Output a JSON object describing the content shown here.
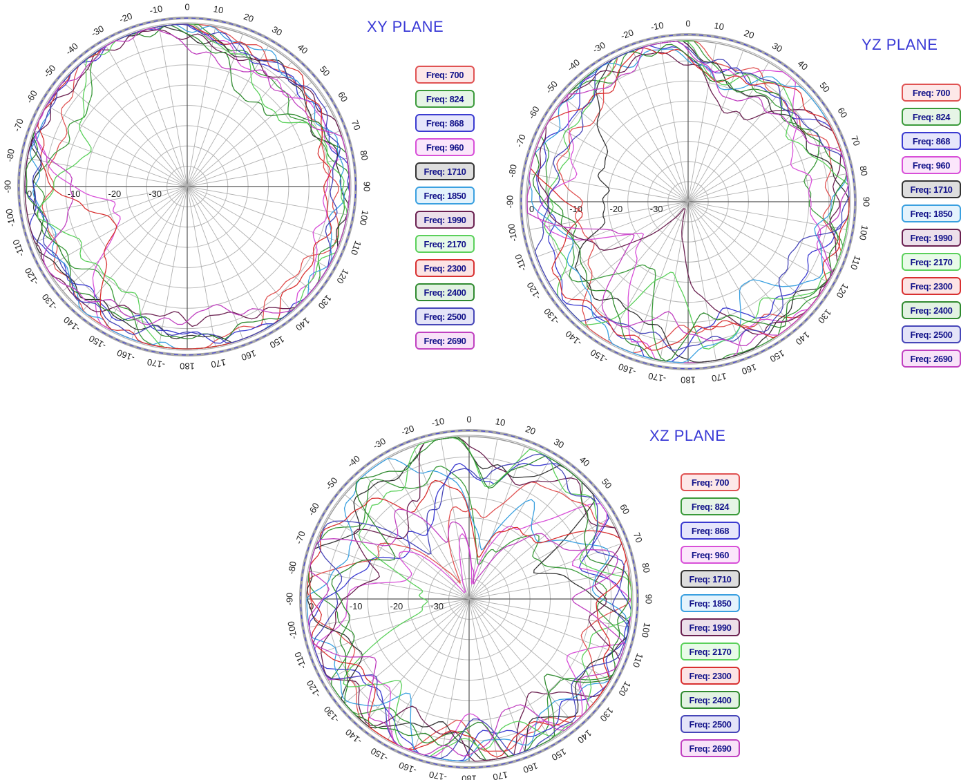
{
  "chart_data": [
    {
      "type": "polar",
      "title": "XY PLANE",
      "angle_ticks": [
        "0",
        "10",
        "20",
        "30",
        "40",
        "50",
        "60",
        "70",
        "80",
        "90",
        "100",
        "110",
        "120",
        "130",
        "140",
        "150",
        "160",
        "170",
        "180",
        "-170",
        "-160",
        "-150",
        "-140",
        "-130",
        "-120",
        "-110",
        "-100",
        "-90",
        "-80",
        "-70",
        "-60",
        "-50",
        "-40",
        "-30",
        "-20",
        "-10"
      ],
      "radial_ticks": [
        "0",
        "-10",
        "-20",
        "-30"
      ],
      "rlim": [
        -40,
        0
      ],
      "legend": [
        "Freq: 700",
        "Freq: 824",
        "Freq: 868",
        "Freq: 960",
        "Freq: 1710",
        "Freq: 1850",
        "Freq: 1990",
        "Freq: 2170",
        "Freq: 2300",
        "Freq: 2400",
        "Freq: 2500",
        "Freq: 2690"
      ],
      "series_colors": [
        "#e05252",
        "#3a9a3a",
        "#3a3ad0",
        "#d84fd8",
        "#333333",
        "#3aa0e0",
        "#6a2050",
        "#5ad05a",
        "#d83030",
        "#2f8a2f",
        "#4646b8",
        "#c040c0"
      ],
      "reference_level": 1.5,
      "series_shape": [
        {
          "base": -1.5,
          "harmonics": [
            [
              2,
              3.5,
              0.2
            ],
            [
              3,
              2.5,
              1.0
            ],
            [
              5,
              1.5,
              2.0
            ]
          ],
          "dip": [
            130,
            6,
            22
          ]
        },
        {
          "base": -2.0,
          "harmonics": [
            [
              2,
              4.5,
              1.2
            ],
            [
              4,
              2.0,
              0.4
            ],
            [
              7,
              1.2,
              1.6
            ]
          ],
          "dip": [
            300,
            9,
            28
          ]
        },
        {
          "base": -1.0,
          "harmonics": [
            [
              2,
              2.5,
              2.2
            ],
            [
              3,
              1.5,
              0.3
            ],
            [
              6,
              1.0,
              1.1
            ]
          ],
          "dip": [
            230,
            4,
            20
          ]
        },
        {
          "base": -2.5,
          "harmonics": [
            [
              2,
              5.0,
              0.7
            ],
            [
              3,
              3.0,
              2.4
            ],
            [
              5,
              1.8,
              0.5
            ]
          ],
          "dip": [
            250,
            10,
            30
          ]
        },
        {
          "base": -1.2,
          "harmonics": [
            [
              2,
              2.8,
              1.7
            ],
            [
              4,
              1.5,
              2.6
            ],
            [
              7,
              0.8,
              0.9
            ]
          ],
          "dip": [
            60,
            3,
            18
          ]
        },
        {
          "base": -0.8,
          "harmonics": [
            [
              2,
              2.2,
              0.9
            ],
            [
              3,
              1.2,
              1.9
            ],
            [
              6,
              0.8,
              2.8
            ]
          ],
          "dip": [
            100,
            3,
            16
          ]
        },
        {
          "base": -1.6,
          "harmonics": [
            [
              2,
              3.2,
              2.9
            ],
            [
              3,
              2.0,
              0.6
            ],
            [
              5,
              1.2,
              1.4
            ]
          ],
          "dip": [
            200,
            4,
            22
          ]
        },
        {
          "base": -3.0,
          "harmonics": [
            [
              2,
              5.5,
              1.4
            ],
            [
              4,
              3.0,
              0.2
            ],
            [
              9,
              1.5,
              2.1
            ]
          ],
          "dip": [
            290,
            12,
            32
          ]
        },
        {
          "base": -2.2,
          "harmonics": [
            [
              2,
              4.0,
              0.4
            ],
            [
              3,
              2.2,
              2.8
            ],
            [
              6,
              1.4,
              1.2
            ]
          ],
          "dip": [
            240,
            12,
            26
          ]
        },
        {
          "base": -1.8,
          "harmonics": [
            [
              2,
              3.8,
              2.0
            ],
            [
              3,
              1.6,
              1.5
            ],
            [
              8,
              1.0,
              0.3
            ]
          ],
          "dip": [
            40,
            8,
            24
          ]
        },
        {
          "base": -1.1,
          "harmonics": [
            [
              2,
              2.6,
              1.0
            ],
            [
              4,
              1.4,
              2.2
            ],
            [
              5,
              0.9,
              0.8
            ]
          ],
          "dip": [
            180,
            3,
            20
          ]
        },
        {
          "base": -2.4,
          "harmonics": [
            [
              2,
              4.6,
              2.6
            ],
            [
              3,
              2.8,
              0.9
            ],
            [
              7,
              1.6,
              1.8
            ]
          ],
          "dip": [
            265,
            10,
            26
          ]
        }
      ]
    },
    {
      "type": "polar",
      "title": "YZ PLANE",
      "angle_ticks": [
        "0",
        "10",
        "20",
        "30",
        "40",
        "50",
        "60",
        "70",
        "80",
        "90",
        "100",
        "110",
        "120",
        "130",
        "140",
        "150",
        "160",
        "170",
        "180",
        "-170",
        "-160",
        "-150",
        "-140",
        "-130",
        "-120",
        "-110",
        "-100",
        "-90",
        "-80",
        "-70",
        "-60",
        "-50",
        "-40",
        "-30",
        "-20",
        "-10"
      ],
      "radial_ticks": [
        "0",
        "-10",
        "-20",
        "-30"
      ],
      "rlim": [
        -40,
        0
      ],
      "legend": [
        "Freq: 700",
        "Freq: 824",
        "Freq: 868",
        "Freq: 960",
        "Freq: 1710",
        "Freq: 1850",
        "Freq: 1990",
        "Freq: 2170",
        "Freq: 2300",
        "Freq: 2400",
        "Freq: 2500",
        "Freq: 2690"
      ],
      "series_colors": [
        "#e05252",
        "#3a9a3a",
        "#3a3ad0",
        "#d84fd8",
        "#333333",
        "#3aa0e0",
        "#6a2050",
        "#5ad05a",
        "#d83030",
        "#2f8a2f",
        "#4646b8",
        "#c040c0"
      ],
      "reference_level": 1.5,
      "series_shape": [
        {
          "base": -3.0,
          "harmonics": [
            [
              3,
              4.0,
              0.3
            ],
            [
              5,
              3.0,
              1.4
            ],
            [
              8,
              2.0,
              2.2
            ]
          ],
          "dip": [
            255,
            14,
            30
          ]
        },
        {
          "base": -3.5,
          "harmonics": [
            [
              2,
              4.5,
              1.1
            ],
            [
              6,
              3.0,
              0.5
            ],
            [
              9,
              2.0,
              1.8
            ]
          ],
          "dip": [
            215,
            12,
            24
          ]
        },
        {
          "base": -2.5,
          "harmonics": [
            [
              3,
              3.5,
              2.1
            ],
            [
              4,
              2.5,
              0.7
            ],
            [
              7,
              2.0,
              2.9
            ]
          ],
          "dip": [
            170,
            10,
            20
          ]
        },
        {
          "base": -4.0,
          "harmonics": [
            [
              2,
              5.0,
              0.6
            ],
            [
              5,
              3.5,
              2.4
            ],
            [
              8,
              2.5,
              1.0
            ]
          ],
          "dip": [
            230,
            14,
            28
          ]
        },
        {
          "base": -3.0,
          "harmonics": [
            [
              2,
              4.5,
              1.8
            ],
            [
              4,
              3.0,
              0.2
            ],
            [
              6,
              2.5,
              1.5
            ]
          ],
          "dip": [
            280,
            22,
            40
          ]
        },
        {
          "base": -2.8,
          "harmonics": [
            [
              3,
              3.8,
              2.7
            ],
            [
              5,
              2.6,
              1.2
            ],
            [
              9,
              1.6,
              0.4
            ]
          ],
          "dip": [
            145,
            10,
            18
          ]
        },
        {
          "base": -4.5,
          "harmonics": [
            [
              2,
              5.5,
              2.3
            ],
            [
              4,
              3.5,
              1.6
            ],
            [
              6,
              2.8,
              0.1
            ]
          ],
          "dip": [
            210,
            24,
            60
          ]
        },
        {
          "base": -3.6,
          "harmonics": [
            [
              3,
              4.5,
              0.9
            ],
            [
              6,
              3.0,
              2.0
            ],
            [
              8,
              2.2,
              1.3
            ]
          ],
          "dip": [
            200,
            15,
            26
          ]
        },
        {
          "base": -2.2,
          "harmonics": [
            [
              2,
              3.6,
              2.9
            ],
            [
              5,
              2.4,
              0.8
            ],
            [
              7,
              2.0,
              1.9
            ]
          ],
          "dip": [
            265,
            12,
            22
          ]
        },
        {
          "base": -3.2,
          "harmonics": [
            [
              2,
              4.8,
              1.4
            ],
            [
              3,
              3.2,
              2.6
            ],
            [
              9,
              1.8,
              0.6
            ]
          ],
          "dip": [
            165,
            12,
            22
          ]
        },
        {
          "base": -2.6,
          "harmonics": [
            [
              3,
              3.2,
              0.5
            ],
            [
              4,
              2.8,
              1.7
            ],
            [
              7,
              2.2,
              2.5
            ]
          ],
          "dip": [
            125,
            10,
            24
          ]
        },
        {
          "base": -3.8,
          "harmonics": [
            [
              2,
              5.2,
              2.0
            ],
            [
              5,
              3.4,
              0.3
            ],
            [
              8,
              2.6,
              1.1
            ]
          ],
          "dip": [
            240,
            12,
            26
          ]
        }
      ]
    },
    {
      "type": "polar",
      "title": "XZ PLANE",
      "angle_ticks": [
        "0",
        "10",
        "20",
        "30",
        "40",
        "50",
        "60",
        "70",
        "80",
        "90",
        "100",
        "110",
        "120",
        "130",
        "140",
        "150",
        "160",
        "170",
        "180",
        "-170",
        "-160",
        "-150",
        "-140",
        "-130",
        "-120",
        "-110",
        "-100",
        "-90",
        "-80",
        "-70",
        "-60",
        "-50",
        "-40",
        "-30",
        "-20",
        "-10"
      ],
      "radial_ticks": [
        "0",
        "-10",
        "-20",
        "-30"
      ],
      "rlim": [
        -40,
        0
      ],
      "legend": [
        "Freq: 700",
        "Freq: 824",
        "Freq: 868",
        "Freq: 960",
        "Freq: 1710",
        "Freq: 1850",
        "Freq: 1990",
        "Freq: 2170",
        "Freq: 2300",
        "Freq: 2400",
        "Freq: 2500",
        "Freq: 2690"
      ],
      "series_colors": [
        "#e05252",
        "#3a9a3a",
        "#3a3ad0",
        "#d84fd8",
        "#333333",
        "#3aa0e0",
        "#6a2050",
        "#5ad05a",
        "#d83030",
        "#2f8a2f",
        "#4646b8",
        "#c040c0"
      ],
      "reference_level": 1.5,
      "series_shape": [
        {
          "base": -3.0,
          "harmonics": [
            [
              5,
              4.0,
              0.2
            ],
            [
              8,
              3.0,
              1.1
            ],
            [
              10,
              2.0,
              2.3
            ]
          ],
          "dip": [
            335,
            24,
            60
          ]
        },
        {
          "base": -3.5,
          "harmonics": [
            [
              6,
              4.5,
              1.3
            ],
            [
              9,
              3.0,
              0.6
            ],
            [
              12,
              2.0,
              1.9
            ]
          ],
          "dip": [
            30,
            22,
            60
          ]
        },
        {
          "base": -2.8,
          "harmonics": [
            [
              5,
              3.5,
              2.4
            ],
            [
              7,
              3.0,
              0.9
            ],
            [
              11,
              2.2,
              1.5
            ]
          ],
          "dip": [
            320,
            18,
            50
          ]
        },
        {
          "base": -4.0,
          "harmonics": [
            [
              7,
              5.0,
              0.7
            ],
            [
              10,
              3.5,
              2.1
            ],
            [
              13,
              2.4,
              0.4
            ]
          ],
          "dip": [
            340,
            30,
            80
          ]
        },
        {
          "base": -3.2,
          "harmonics": [
            [
              6,
              4.2,
              1.9
            ],
            [
              8,
              3.0,
              0.3
            ],
            [
              12,
              2.0,
              2.7
            ]
          ],
          "dip": [
            75,
            12,
            26
          ]
        },
        {
          "base": -3.0,
          "harmonics": [
            [
              5,
              3.8,
              2.8
            ],
            [
              9,
              3.2,
              1.4
            ],
            [
              11,
              2.0,
              0.2
            ]
          ],
          "dip": [
            25,
            18,
            50
          ]
        },
        {
          "base": -4.2,
          "harmonics": [
            [
              6,
              5.2,
              0.4
            ],
            [
              8,
              3.6,
              1.7
            ],
            [
              14,
              2.2,
              2.6
            ]
          ],
          "dip": [
            300,
            14,
            30
          ]
        },
        {
          "base": -3.6,
          "harmonics": [
            [
              7,
              4.6,
              1.6
            ],
            [
              10,
              3.0,
              2.5
            ],
            [
              12,
              2.4,
              0.8
            ]
          ],
          "dip": [
            270,
            24,
            44
          ]
        },
        {
          "base": -2.6,
          "harmonics": [
            [
              5,
              3.6,
              0.9
            ],
            [
              8,
              3.2,
              2.0
            ],
            [
              10,
              2.0,
              1.2
            ]
          ],
          "dip": [
            15,
            20,
            60
          ]
        },
        {
          "base": -3.4,
          "harmonics": [
            [
              6,
              4.4,
              2.2
            ],
            [
              9,
              3.4,
              0.5
            ],
            [
              11,
              2.2,
              1.8
            ]
          ],
          "dip": [
            285,
            12,
            26
          ]
        },
        {
          "base": -2.9,
          "harmonics": [
            [
              7,
              3.9,
              1.0
            ],
            [
              8,
              3.0,
              2.9
            ],
            [
              13,
              2.0,
              0.6
            ]
          ],
          "dip": [
            330,
            16,
            40
          ]
        },
        {
          "base": -3.8,
          "harmonics": [
            [
              5,
              4.8,
              1.5
            ],
            [
              10,
              3.6,
              0.1
            ],
            [
              12,
              2.6,
              2.4
            ]
          ],
          "dip": [
            10,
            26,
            70
          ]
        }
      ]
    }
  ]
}
